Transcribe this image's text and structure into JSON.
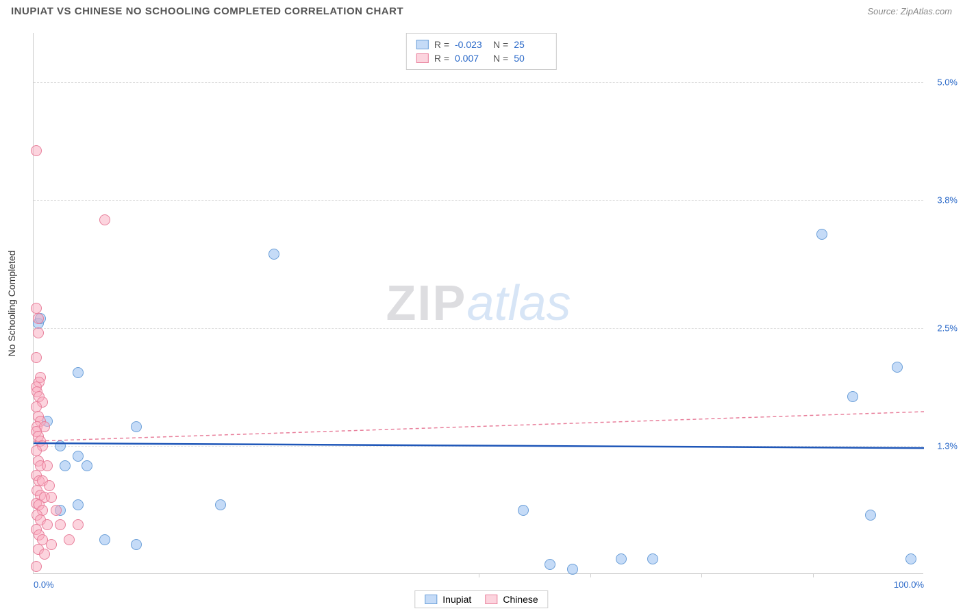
{
  "title": "INUPIAT VS CHINESE NO SCHOOLING COMPLETED CORRELATION CHART",
  "source": "Source: ZipAtlas.com",
  "yaxis_title": "No Schooling Completed",
  "watermark": {
    "part1": "ZIP",
    "part2": "atlas"
  },
  "chart": {
    "type": "scatter",
    "xlim": [
      0,
      100
    ],
    "ylim": [
      0,
      5.5
    ],
    "x_axis_labels": [
      {
        "pos": 0,
        "text": "0.0%"
      },
      {
        "pos": 100,
        "text": "100.0%"
      }
    ],
    "x_ticks": [
      50,
      62.5,
      75,
      87.5
    ],
    "y_gridlines": [
      {
        "val": 1.3,
        "label": "1.3%"
      },
      {
        "val": 2.5,
        "label": "2.5%"
      },
      {
        "val": 3.8,
        "label": "3.8%"
      },
      {
        "val": 5.0,
        "label": "5.0%"
      }
    ],
    "label_color": "#2968c8",
    "grid_color": "#dddddd",
    "series": [
      {
        "name": "Inupiat",
        "fill": "rgba(150,190,240,0.55)",
        "stroke": "#6b9fd8",
        "marker_radius": 8,
        "trend": {
          "y_start": 1.33,
          "y_end": 1.28,
          "color": "#1e56b8",
          "width": 2.5,
          "dash": "none"
        },
        "points": [
          [
            0.5,
            2.55
          ],
          [
            0.8,
            2.6
          ],
          [
            1.5,
            1.55
          ],
          [
            3.0,
            1.3
          ],
          [
            5.0,
            2.05
          ],
          [
            3.5,
            1.1
          ],
          [
            5.0,
            1.2
          ],
          [
            6.0,
            1.1
          ],
          [
            5.0,
            0.7
          ],
          [
            3.0,
            0.65
          ],
          [
            8.0,
            0.35
          ],
          [
            11.5,
            1.5
          ],
          [
            11.5,
            0.3
          ],
          [
            21.0,
            0.7
          ],
          [
            27.0,
            3.25
          ],
          [
            55.0,
            0.65
          ],
          [
            58.0,
            0.1
          ],
          [
            60.5,
            0.05
          ],
          [
            66.0,
            0.15
          ],
          [
            69.5,
            0.15
          ],
          [
            88.5,
            3.45
          ],
          [
            92.0,
            1.8
          ],
          [
            94.0,
            0.6
          ],
          [
            97.0,
            2.1
          ],
          [
            98.5,
            0.15
          ]
        ]
      },
      {
        "name": "Chinese",
        "fill": "rgba(250,170,190,0.5)",
        "stroke": "#e87f9b",
        "marker_radius": 8,
        "trend": {
          "y_start": 1.35,
          "y_end": 1.65,
          "color": "#e87f9b",
          "width": 1.5,
          "dash": "5,4"
        },
        "points": [
          [
            0.3,
            4.3
          ],
          [
            0.3,
            2.7
          ],
          [
            0.5,
            2.6
          ],
          [
            0.5,
            2.45
          ],
          [
            0.3,
            2.2
          ],
          [
            0.8,
            2.0
          ],
          [
            0.6,
            1.95
          ],
          [
            0.3,
            1.9
          ],
          [
            0.4,
            1.85
          ],
          [
            0.6,
            1.8
          ],
          [
            1.0,
            1.75
          ],
          [
            0.3,
            1.7
          ],
          [
            0.5,
            1.6
          ],
          [
            0.8,
            1.55
          ],
          [
            0.4,
            1.5
          ],
          [
            1.2,
            1.5
          ],
          [
            0.3,
            1.45
          ],
          [
            0.5,
            1.4
          ],
          [
            0.8,
            1.35
          ],
          [
            1.0,
            1.3
          ],
          [
            0.3,
            1.25
          ],
          [
            0.5,
            1.15
          ],
          [
            0.8,
            1.1
          ],
          [
            1.5,
            1.1
          ],
          [
            0.3,
            1.0
          ],
          [
            0.6,
            0.95
          ],
          [
            1.0,
            0.95
          ],
          [
            1.8,
            0.9
          ],
          [
            0.4,
            0.85
          ],
          [
            0.8,
            0.8
          ],
          [
            1.2,
            0.78
          ],
          [
            2.0,
            0.78
          ],
          [
            0.3,
            0.72
          ],
          [
            0.6,
            0.7
          ],
          [
            1.0,
            0.65
          ],
          [
            2.5,
            0.65
          ],
          [
            0.4,
            0.6
          ],
          [
            0.8,
            0.55
          ],
          [
            1.5,
            0.5
          ],
          [
            3.0,
            0.5
          ],
          [
            0.3,
            0.45
          ],
          [
            0.6,
            0.4
          ],
          [
            1.0,
            0.35
          ],
          [
            2.0,
            0.3
          ],
          [
            4.0,
            0.35
          ],
          [
            0.5,
            0.25
          ],
          [
            1.2,
            0.2
          ],
          [
            5.0,
            0.5
          ],
          [
            0.3,
            0.08
          ],
          [
            8.0,
            3.6
          ]
        ]
      }
    ]
  },
  "stats": [
    {
      "series": 0,
      "r_label": "R =",
      "r": "-0.023",
      "n_label": "N =",
      "n": "25"
    },
    {
      "series": 1,
      "r_label": "R =",
      "r": "0.007",
      "n_label": "N =",
      "n": "50"
    }
  ],
  "legend": [
    {
      "series": 0,
      "label": "Inupiat"
    },
    {
      "series": 1,
      "label": "Chinese"
    }
  ]
}
